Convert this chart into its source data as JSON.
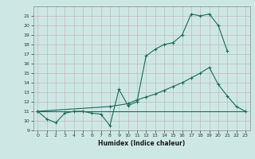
{
  "xlabel": "Humidex (Indice chaleur)",
  "background_color": "#cde8e4",
  "grid_color": "#c8dbd8",
  "line_color": "#1a6b5a",
  "xlim": [
    -0.5,
    23.5
  ],
  "ylim": [
    9,
    22
  ],
  "yticks": [
    9,
    10,
    11,
    12,
    13,
    14,
    15,
    16,
    17,
    18,
    19,
    20,
    21
  ],
  "xticks": [
    0,
    1,
    2,
    3,
    4,
    5,
    6,
    7,
    8,
    9,
    10,
    11,
    12,
    13,
    14,
    15,
    16,
    17,
    18,
    19,
    20,
    21,
    22,
    23
  ],
  "line1_x": [
    0,
    1,
    2,
    3,
    4,
    5,
    6,
    7,
    8,
    9,
    10,
    11,
    12,
    13,
    14,
    15,
    16,
    17,
    18,
    19,
    20,
    21
  ],
  "line1_y": [
    11,
    10.2,
    9.8,
    10.8,
    11,
    11,
    10.8,
    10.7,
    9.5,
    13.3,
    11.6,
    12.0,
    16.8,
    17.5,
    18.0,
    18.2,
    19.0,
    21.2,
    21.0,
    21.2,
    20.0,
    17.3
  ],
  "line2_x": [
    0,
    8,
    10,
    11,
    12,
    13,
    14,
    15,
    16,
    17,
    18,
    19,
    20,
    21,
    22,
    23
  ],
  "line2_y": [
    11,
    11.5,
    11.8,
    12.2,
    12.5,
    12.8,
    13.2,
    13.6,
    14.0,
    14.5,
    15.0,
    15.6,
    13.8,
    12.6,
    11.5,
    11.0
  ],
  "line3_x": [
    0,
    23
  ],
  "line3_y": [
    11,
    11
  ]
}
